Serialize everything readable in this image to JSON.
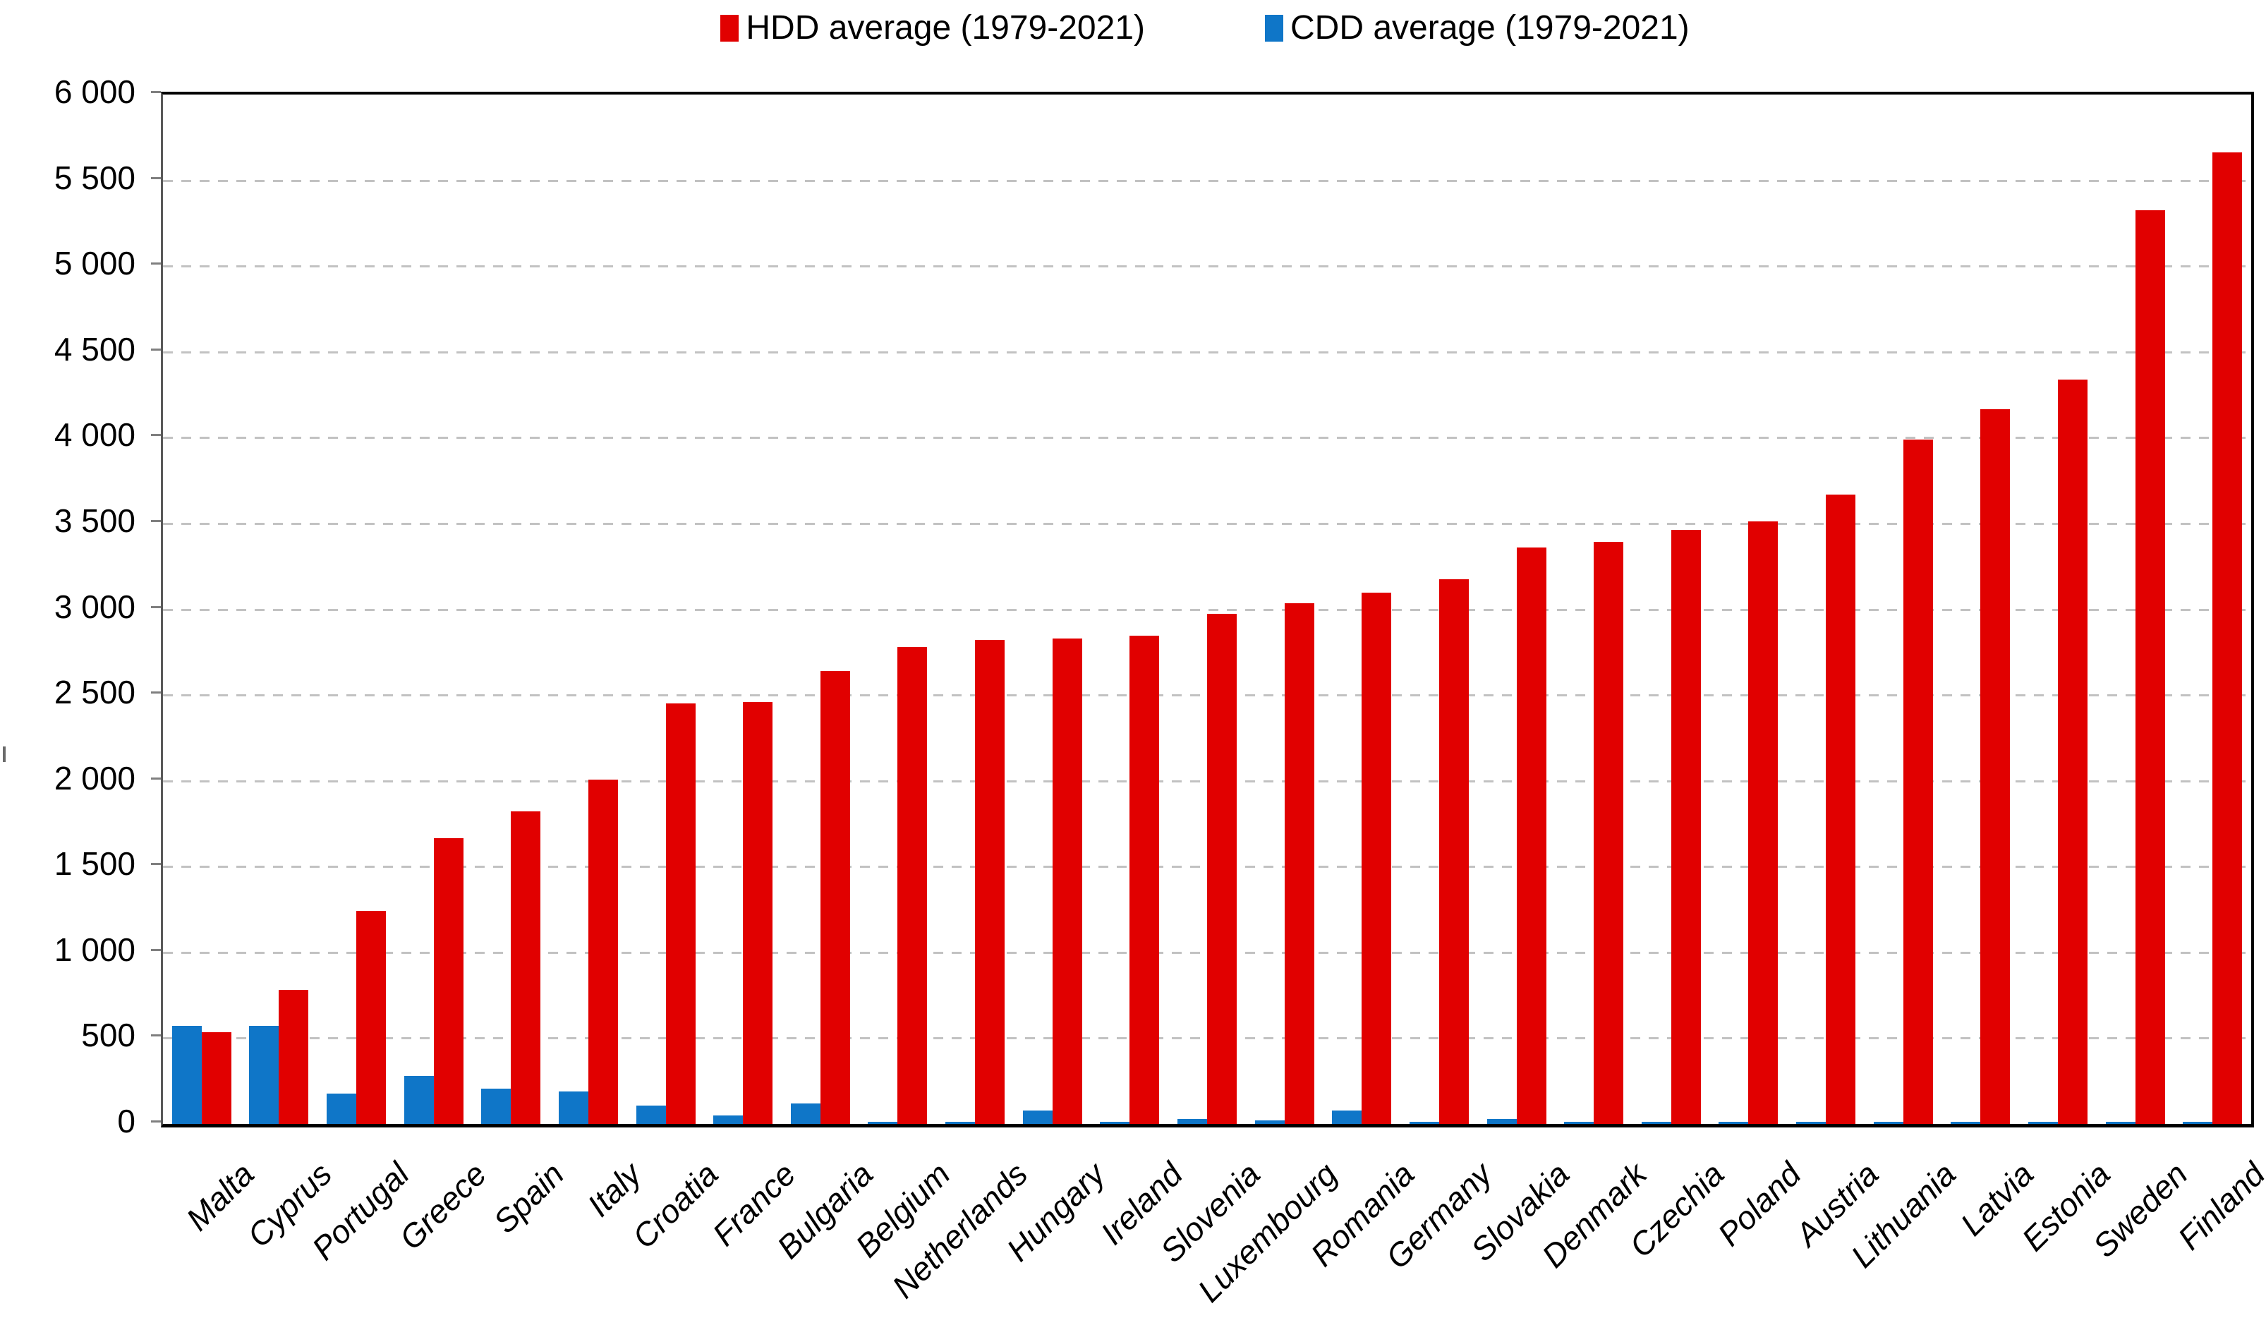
{
  "legend": {
    "items": [
      {
        "label": "HDD average (1979-2021)",
        "color": "#e10000",
        "series": "hdd"
      },
      {
        "label": "CDD average (1979-2021)",
        "color": "#0f76c8",
        "series": "cdd"
      }
    ]
  },
  "chart_data": {
    "type": "bar",
    "title": "",
    "xlabel": "",
    "ylabel": "",
    "categories": [
      "Malta",
      "Cyprus",
      "Portugal",
      "Greece",
      "Spain",
      "Italy",
      "Croatia",
      "France",
      "Bulgaria",
      "Belgium",
      "Netherlands",
      "Hungary",
      "Ireland",
      "Slovenia",
      "Luxembourg",
      "Romania",
      "Germany",
      "Slovakia",
      "Denmark",
      "Czechia",
      "Poland",
      "Austria",
      "Lithuania",
      "Latvia",
      "Estonia",
      "Sweden",
      "Finland"
    ],
    "series": [
      {
        "name": "CDD average (1979-2021)",
        "color": "#0f76c8",
        "values": [
          573,
          572,
          177,
          279,
          205,
          189,
          107,
          49,
          118,
          14,
          9,
          79,
          4,
          28,
          19,
          78,
          14,
          29,
          5,
          12,
          12,
          12,
          5,
          6,
          4,
          3,
          2
        ]
      },
      {
        "name": "HDD average (1979-2021)",
        "color": "#e10000",
        "values": [
          536,
          781,
          1242,
          1665,
          1820,
          2006,
          2451,
          2459,
          2641,
          2781,
          2822,
          2830,
          2845,
          2972,
          3034,
          3095,
          3175,
          3361,
          3392,
          3461,
          3514,
          3669,
          3987,
          4166,
          4340,
          5324,
          5663
        ]
      }
    ],
    "bar_order": "CDD left (blue), HDD right (red), bars touching within pair",
    "ylim": [
      0,
      6000
    ],
    "ytick_step": 500,
    "ytick_labels": [
      "0",
      "500",
      "1 000",
      "1 500",
      "2 000",
      "2 500",
      "3 000",
      "3 500",
      "4 000",
      "4 500",
      "5 000",
      "5 500",
      "6 000"
    ],
    "grid": "horizontal dashed light-gray",
    "legend_position": "top-center",
    "x_label_style": "rotated 45deg, italic"
  }
}
